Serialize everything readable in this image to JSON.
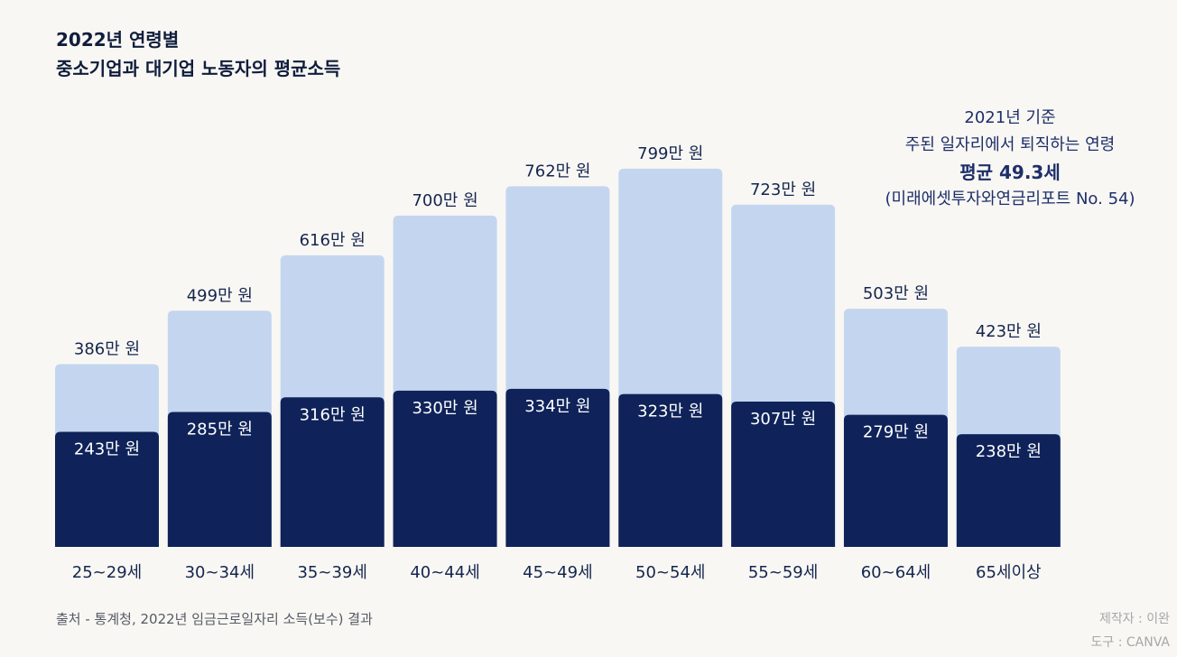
{
  "title": {
    "line1": "2022년 연령별",
    "line2": "중소기업과 대기업 노동자의 평균소득"
  },
  "annotation": {
    "line1": "2021년 기준",
    "line2": "주된 일자리에서 퇴직하는 연령",
    "line3": "평균 49.3세",
    "line4": "(미래에셋투자와연금리포트 No. 54)"
  },
  "source": "출처 - 통계청, 2022년 임금근로일자리 소득(보수) 결과",
  "credits": {
    "maker": "제작자 : 이완",
    "tool": "도구 : CANVA"
  },
  "colors": {
    "large_company": "#c4d6ef",
    "small_company": "#0f235a",
    "dark_text": "#14264f",
    "light_text": "#ffffff"
  },
  "chart_data": {
    "type": "bar",
    "categories": [
      "25~29세",
      "30~34세",
      "35~39세",
      "40~44세",
      "45~49세",
      "50~54세",
      "55~59세",
      "60~64세",
      "65세이상"
    ],
    "series": [
      {
        "key": "large",
        "values": [
          386,
          499,
          616,
          700,
          762,
          799,
          723,
          503,
          423
        ],
        "labels": [
          "386만 원",
          "499만 원",
          "616만 원",
          "700만 원",
          "762만 원",
          "799만 원",
          "723만 원",
          "503만 원",
          "423만 원"
        ]
      },
      {
        "key": "small",
        "values": [
          243,
          285,
          316,
          330,
          334,
          323,
          307,
          279,
          238
        ],
        "labels": [
          "243만 원",
          "285만 원",
          "316만 원",
          "330만 원",
          "334만 원",
          "323만 원",
          "307만 원",
          "279만 원",
          "238만 원"
        ]
      }
    ],
    "unit": "만 원",
    "ylim": [
      0,
      800
    ],
    "grid": false,
    "legend": "none"
  }
}
